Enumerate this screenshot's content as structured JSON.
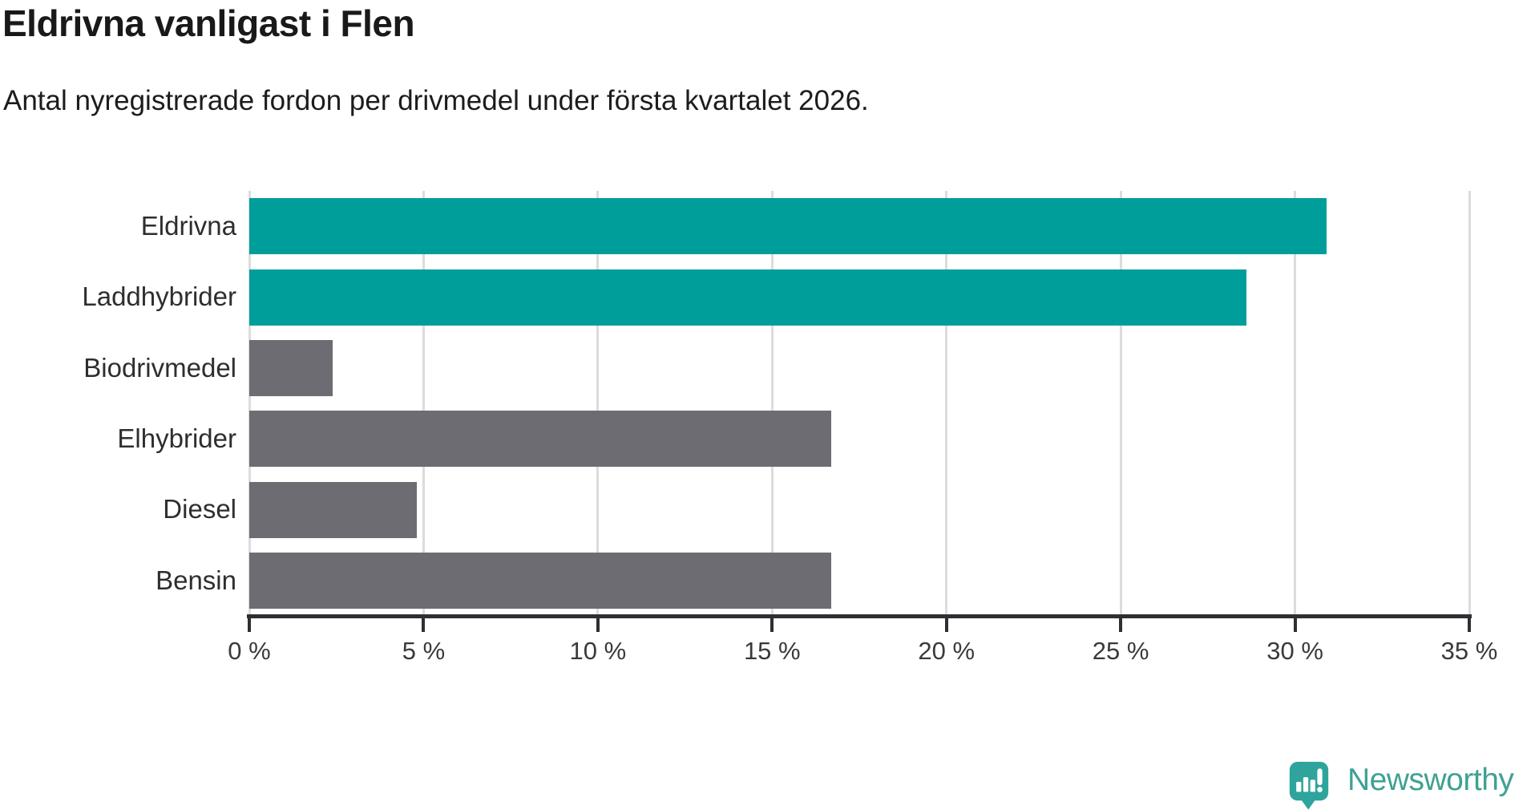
{
  "chart_data": {
    "type": "bar",
    "orientation": "horizontal",
    "title": "Eldrivna vanligast i Flen",
    "subtitle": "Antal nyregistrerade fordon per drivmedel under första kvartalet 2026.",
    "categories": [
      "Eldrivna",
      "Laddhybrider",
      "Biodrivmedel",
      "Elhybrider",
      "Diesel",
      "Bensin"
    ],
    "values": [
      30.9,
      28.6,
      2.4,
      16.7,
      4.8,
      16.7
    ],
    "unit": "%",
    "bar_colors": [
      "#009E9B",
      "#009E9B",
      "#6C6C72",
      "#6C6C72",
      "#6C6C72",
      "#6C6C72"
    ],
    "xlabel": "",
    "ylabel": "",
    "xlim": [
      0,
      35
    ],
    "x_ticks": [
      0,
      5,
      10,
      15,
      20,
      25,
      30,
      35
    ],
    "x_tick_labels": [
      "0 %",
      "5 %",
      "10 %",
      "15 %",
      "20 %",
      "25 %",
      "30 %",
      "35 %"
    ],
    "grid": "vertical",
    "legend": "none"
  },
  "colors": {
    "highlight_bar": "#009E9B",
    "default_bar": "#6C6C72",
    "gridline": "#DCDCDC",
    "axis": "#2F2F33",
    "title_text": "#191919"
  },
  "branding": {
    "logo_text": "Newsworthy",
    "logo_text_color": "#3FA193",
    "logo_icon_color": "#2EA49C",
    "logo_icon": "newsworthy-speech-bubble-barchart-icon"
  }
}
